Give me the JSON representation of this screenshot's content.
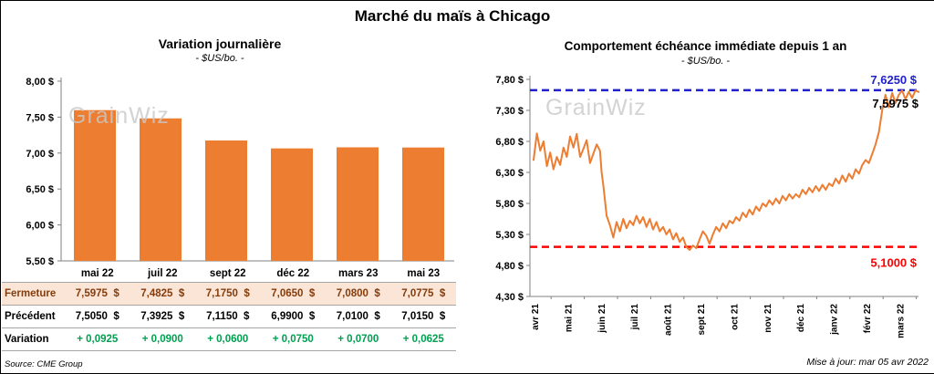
{
  "page": {
    "title": "Marché du maïs à Chicago",
    "source": "Source: CME Group",
    "updated": "Mise à jour: mar 05 avr 2022",
    "watermark": "GrainWiz"
  },
  "colors": {
    "orange": "#ED7D31",
    "blue": "#2020CC",
    "red": "#FF0000",
    "green": "#00A050",
    "fermeture_bg": "#FBE5D6",
    "fermeture_text": "#843C0C",
    "axis": "#808080",
    "watermark": "#C9C9C9"
  },
  "table": {
    "rows": [
      {
        "label": "Fermeture",
        "style": "fermeture",
        "values": [
          "7,5975  $",
          "7,4825  $",
          "7,1750  $",
          "7,0650  $",
          "7,0800  $",
          "7,0775  $"
        ]
      },
      {
        "label": "Précédent",
        "style": "precedent",
        "values": [
          "7,5050  $",
          "7,3925  $",
          "7,1150  $",
          "6,9900  $",
          "7,0100  $",
          "7,0150  $"
        ]
      },
      {
        "label": "Variation",
        "style": "variation",
        "values": [
          "+ 0,0925",
          "+ 0,0900",
          "+ 0,0600",
          "+ 0,0750",
          "+ 0,0700",
          "+ 0,0625"
        ]
      }
    ]
  },
  "chart_data": [
    {
      "type": "bar",
      "title": "Variation  journalière",
      "subtitle": "- $US/bo. -",
      "categories": [
        "mai 22",
        "juil 22",
        "sept 22",
        "déc 22",
        "mars 23",
        "mai 23"
      ],
      "values": [
        7.5975,
        7.4825,
        7.175,
        7.065,
        7.08,
        7.0775
      ],
      "ylim": [
        5.5,
        8.0
      ],
      "ytick_step": 0.5,
      "ytick_labels": [
        "5,50 $",
        "6,00 $",
        "6,50 $",
        "7,00 $",
        "7,50 $",
        "8,00 $"
      ],
      "bar_color": "#ED7D31",
      "grid": false,
      "legend": false
    },
    {
      "type": "line",
      "title": "Comportement  échéance  immédiate  depuis 1 an",
      "subtitle": "- $US/bo. -",
      "x_labels": [
        "avr 21",
        "mai 21",
        "juin 21",
        "juil 21",
        "août 21",
        "sept 21",
        "oct 21",
        "nov 21",
        "déc 21",
        "janv 22",
        "févr 22",
        "mars 22"
      ],
      "ylim": [
        4.3,
        7.8
      ],
      "ytick_step": 0.5,
      "ytick_labels": [
        "4,30 $",
        "4,80 $",
        "5,30 $",
        "5,80 $",
        "6,30 $",
        "6,80 $",
        "7,30 $",
        "7,80 $"
      ],
      "line_color": "#ED7D31",
      "grid": false,
      "legend": false,
      "ref_lines": [
        {
          "value": 7.625,
          "label": "7,6250 $",
          "color": "#2020CC",
          "position": "above"
        },
        {
          "value": 5.1,
          "label": "5,1000 $",
          "color": "#FF0000",
          "position": "below"
        }
      ],
      "last_point": {
        "value": 7.5975,
        "label": "7,5975 $"
      },
      "points": [
        [
          0,
          6.5
        ],
        [
          0.1,
          6.93
        ],
        [
          0.2,
          6.65
        ],
        [
          0.3,
          6.8
        ],
        [
          0.4,
          6.4
        ],
        [
          0.5,
          6.62
        ],
        [
          0.6,
          6.35
        ],
        [
          0.7,
          6.55
        ],
        [
          0.8,
          6.42
        ],
        [
          0.9,
          6.7
        ],
        [
          1,
          6.55
        ],
        [
          1.1,
          6.88
        ],
        [
          1.2,
          6.7
        ],
        [
          1.3,
          6.92
        ],
        [
          1.4,
          6.55
        ],
        [
          1.5,
          6.68
        ],
        [
          1.6,
          6.82
        ],
        [
          1.7,
          6.45
        ],
        [
          1.8,
          6.6
        ],
        [
          1.9,
          6.75
        ],
        [
          2,
          6.65
        ],
        [
          2.05,
          6.3
        ],
        [
          2.1,
          6.1
        ],
        [
          2.2,
          5.6
        ],
        [
          2.3,
          5.45
        ],
        [
          2.4,
          5.25
        ],
        [
          2.5,
          5.5
        ],
        [
          2.6,
          5.35
        ],
        [
          2.7,
          5.55
        ],
        [
          2.8,
          5.4
        ],
        [
          2.9,
          5.52
        ],
        [
          3,
          5.45
        ],
        [
          3.1,
          5.6
        ],
        [
          3.2,
          5.48
        ],
        [
          3.3,
          5.58
        ],
        [
          3.4,
          5.42
        ],
        [
          3.5,
          5.55
        ],
        [
          3.6,
          5.38
        ],
        [
          3.7,
          5.5
        ],
        [
          3.8,
          5.35
        ],
        [
          3.9,
          5.42
        ],
        [
          4,
          5.3
        ],
        [
          4.1,
          5.38
        ],
        [
          4.2,
          5.22
        ],
        [
          4.3,
          5.32
        ],
        [
          4.4,
          5.18
        ],
        [
          4.5,
          5.25
        ],
        [
          4.6,
          5.1
        ],
        [
          4.7,
          5.05
        ],
        [
          4.8,
          5.12
        ],
        [
          4.9,
          5.08
        ],
        [
          5,
          5.22
        ],
        [
          5.1,
          5.35
        ],
        [
          5.2,
          5.28
        ],
        [
          5.3,
          5.15
        ],
        [
          5.4,
          5.3
        ],
        [
          5.5,
          5.42
        ],
        [
          5.6,
          5.35
        ],
        [
          5.7,
          5.48
        ],
        [
          5.8,
          5.4
        ],
        [
          5.9,
          5.52
        ],
        [
          6,
          5.48
        ],
        [
          6.1,
          5.58
        ],
        [
          6.2,
          5.52
        ],
        [
          6.3,
          5.65
        ],
        [
          6.4,
          5.58
        ],
        [
          6.5,
          5.7
        ],
        [
          6.6,
          5.62
        ],
        [
          6.7,
          5.75
        ],
        [
          6.8,
          5.68
        ],
        [
          6.9,
          5.8
        ],
        [
          7,
          5.75
        ],
        [
          7.1,
          5.85
        ],
        [
          7.2,
          5.78
        ],
        [
          7.3,
          5.88
        ],
        [
          7.4,
          5.8
        ],
        [
          7.5,
          5.92
        ],
        [
          7.6,
          5.85
        ],
        [
          7.7,
          5.95
        ],
        [
          7.8,
          5.88
        ],
        [
          7.9,
          5.95
        ],
        [
          8,
          5.9
        ],
        [
          8.1,
          6.02
        ],
        [
          8.2,
          5.95
        ],
        [
          8.3,
          6.05
        ],
        [
          8.4,
          5.98
        ],
        [
          8.5,
          6.08
        ],
        [
          8.6,
          6.0
        ],
        [
          8.7,
          6.1
        ],
        [
          8.8,
          6.02
        ],
        [
          8.9,
          6.12
        ],
        [
          9,
          6.08
        ],
        [
          9.1,
          6.2
        ],
        [
          9.2,
          6.12
        ],
        [
          9.3,
          6.25
        ],
        [
          9.4,
          6.15
        ],
        [
          9.5,
          6.28
        ],
        [
          9.6,
          6.2
        ],
        [
          9.7,
          6.35
        ],
        [
          9.8,
          6.28
        ],
        [
          9.9,
          6.42
        ],
        [
          10,
          6.5
        ],
        [
          10.1,
          6.45
        ],
        [
          10.2,
          6.6
        ],
        [
          10.3,
          6.75
        ],
        [
          10.4,
          6.95
        ],
        [
          10.5,
          7.3
        ],
        [
          10.6,
          7.55
        ],
        [
          10.7,
          7.35
        ],
        [
          10.8,
          7.58
        ],
        [
          10.9,
          7.42
        ],
        [
          11,
          7.55
        ],
        [
          11.1,
          7.62
        ],
        [
          11.2,
          7.48
        ],
        [
          11.3,
          7.6
        ],
        [
          11.4,
          7.5
        ],
        [
          11.5,
          7.62
        ],
        [
          11.6,
          7.5975
        ]
      ]
    }
  ]
}
